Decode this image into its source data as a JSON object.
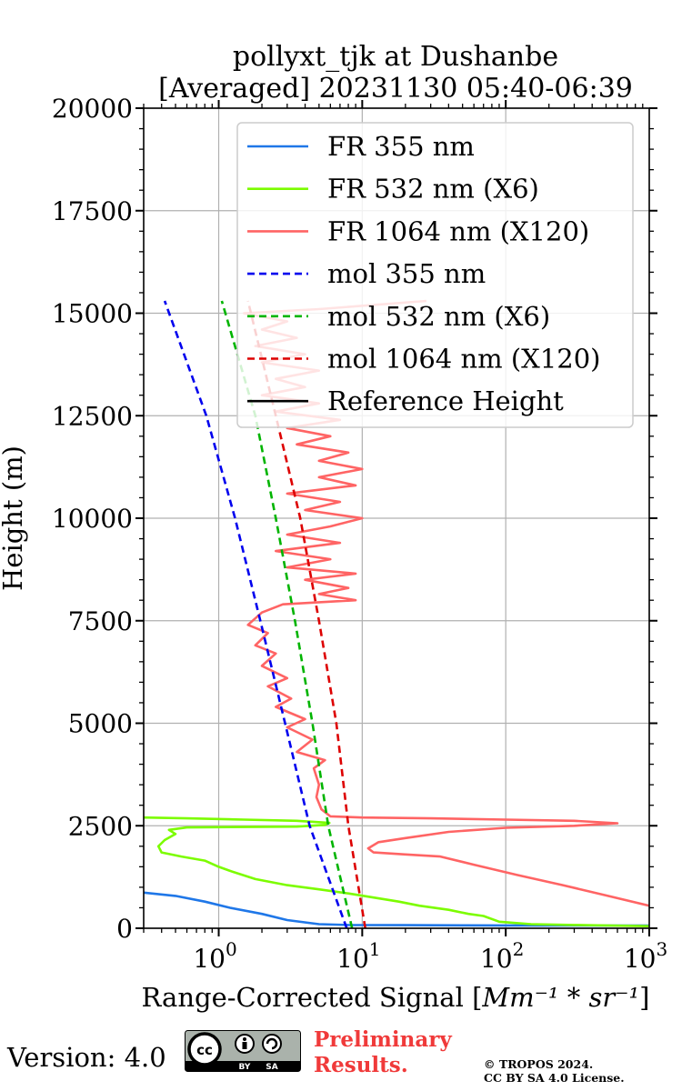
{
  "chart_data": {
    "type": "line",
    "title_lines": [
      "pollyxt_tjk at Dushanbe",
      "[Averaged] 20231130 05:40-06:39"
    ],
    "xlabel": "Range-Corrected Signal [",
    "xlabel_unit": "Mm⁻¹ * sr⁻¹",
    "xlabel_close": "]",
    "ylabel": "Height (m)",
    "xscale": "log",
    "xlim": [
      0.3,
      1000
    ],
    "ylim": [
      0,
      20000
    ],
    "grid": true,
    "legend_placement": "top-right",
    "x_ticks": [
      {
        "value": 1,
        "base": "10",
        "exp": "0"
      },
      {
        "value": 10,
        "base": "10",
        "exp": "1"
      },
      {
        "value": 100,
        "base": "10",
        "exp": "2"
      },
      {
        "value": 1000,
        "base": "10",
        "exp": "3"
      }
    ],
    "y_ticks": [
      0,
      2500,
      5000,
      7500,
      10000,
      12500,
      15000,
      17500,
      20000
    ],
    "series": [
      {
        "name": "FR 355 nm",
        "color": "#1f77e8",
        "style": "solid",
        "points": [
          [
            0.3,
            870
          ],
          [
            0.5,
            790
          ],
          [
            0.8,
            650
          ],
          [
            1.2,
            500
          ],
          [
            2,
            350
          ],
          [
            3,
            200
          ],
          [
            5,
            100
          ],
          [
            8,
            80
          ],
          [
            20,
            75
          ],
          [
            50,
            70
          ],
          [
            100,
            68
          ],
          [
            300,
            66
          ],
          [
            1000,
            65
          ]
        ]
      },
      {
        "name": "FR 532 nm (X6)",
        "color": "#7cfc00",
        "style": "solid",
        "points": [
          [
            1000,
            50
          ],
          [
            300,
            80
          ],
          [
            150,
            100
          ],
          [
            90,
            160
          ],
          [
            70,
            300
          ],
          [
            55,
            350
          ],
          [
            40,
            450
          ],
          [
            25,
            550
          ],
          [
            18,
            650
          ],
          [
            12,
            750
          ],
          [
            8,
            850
          ],
          [
            5,
            950
          ],
          [
            3,
            1050
          ],
          [
            1.8,
            1200
          ],
          [
            1.2,
            1400
          ],
          [
            1,
            1500
          ],
          [
            0.8,
            1650
          ],
          [
            0.55,
            1750
          ],
          [
            0.4,
            1850
          ],
          [
            0.38,
            2000
          ],
          [
            0.42,
            2150
          ],
          [
            0.5,
            2300
          ],
          [
            0.45,
            2400
          ],
          [
            0.6,
            2460
          ],
          [
            1.5,
            2470
          ],
          [
            3.5,
            2480
          ],
          [
            5.5,
            2520
          ],
          [
            5.9,
            2570
          ],
          [
            3.5,
            2620
          ],
          [
            1.5,
            2650
          ],
          [
            0.6,
            2680
          ],
          [
            0.3,
            2700
          ]
        ]
      },
      {
        "name": "FR 1064 nm (X120)",
        "color": "#ff6464",
        "style": "solid",
        "points": [
          [
            1000,
            550
          ],
          [
            500,
            800
          ],
          [
            250,
            1050
          ],
          [
            120,
            1300
          ],
          [
            60,
            1550
          ],
          [
            35,
            1750
          ],
          [
            20,
            1800
          ],
          [
            12,
            1850
          ],
          [
            11,
            1950
          ],
          [
            13,
            2100
          ],
          [
            20,
            2200
          ],
          [
            40,
            2350
          ],
          [
            100,
            2450
          ],
          [
            300,
            2500
          ],
          [
            600,
            2560
          ],
          [
            300,
            2620
          ],
          [
            100,
            2650
          ],
          [
            30,
            2680
          ],
          [
            10,
            2700
          ],
          [
            6,
            2730
          ],
          [
            5.2,
            2900
          ],
          [
            4.8,
            3200
          ],
          [
            5,
            3500
          ],
          [
            4.6,
            3900
          ],
          [
            5.5,
            4100
          ],
          [
            3.5,
            4300
          ],
          [
            4.5,
            4600
          ],
          [
            3,
            4900
          ],
          [
            4,
            5100
          ],
          [
            2.5,
            5400
          ],
          [
            3.2,
            5600
          ],
          [
            2.2,
            5900
          ],
          [
            3,
            6100
          ],
          [
            2,
            6400
          ],
          [
            2.5,
            6700
          ],
          [
            1.8,
            6900
          ],
          [
            2.2,
            7200
          ],
          [
            1.6,
            7400
          ],
          [
            2,
            7700
          ],
          [
            2.8,
            7900
          ],
          [
            9,
            8000
          ],
          [
            5,
            8150
          ],
          [
            8,
            8300
          ],
          [
            4,
            8500
          ],
          [
            9,
            8650
          ],
          [
            3,
            8800
          ],
          [
            6,
            9000
          ],
          [
            2.5,
            9200
          ],
          [
            7,
            9400
          ],
          [
            3,
            9600
          ],
          [
            6,
            9800
          ],
          [
            10,
            10000
          ],
          [
            4,
            10200
          ],
          [
            7,
            10400
          ],
          [
            3,
            10600
          ],
          [
            9,
            10800
          ],
          [
            5,
            11000
          ],
          [
            10,
            11200
          ],
          [
            5,
            11400
          ],
          [
            8,
            11600
          ],
          [
            3.5,
            11800
          ],
          [
            6,
            12000
          ],
          [
            3,
            12200
          ],
          [
            7,
            12400
          ],
          [
            2.5,
            12600
          ],
          [
            5,
            12800
          ],
          [
            2,
            13000
          ],
          [
            4,
            13200
          ],
          [
            2.5,
            13400
          ],
          [
            5,
            13600
          ],
          [
            2,
            13800
          ],
          [
            4,
            14000
          ],
          [
            1.8,
            14200
          ],
          [
            3.5,
            14400
          ],
          [
            2,
            14600
          ],
          [
            3,
            14800
          ],
          [
            1.5,
            15000
          ],
          [
            5,
            15100
          ],
          [
            28,
            15300
          ]
        ]
      },
      {
        "name": "mol 355 nm",
        "color": "#0000ee",
        "style": "dashed",
        "points": [
          [
            7.8,
            0
          ],
          [
            4.3,
            2500
          ],
          [
            2.9,
            5000
          ],
          [
            1.95,
            7500
          ],
          [
            1.3,
            10000
          ],
          [
            0.82,
            12500
          ],
          [
            0.42,
            15300
          ]
        ]
      },
      {
        "name": "mol 532 nm (X6)",
        "color": "#00b400",
        "style": "dashed",
        "points": [
          [
            8.5,
            0
          ],
          [
            5.8,
            2500
          ],
          [
            4.5,
            5000
          ],
          [
            3.4,
            7500
          ],
          [
            2.5,
            10000
          ],
          [
            1.8,
            12500
          ],
          [
            1.05,
            15300
          ]
        ]
      },
      {
        "name": "mol 1064 nm (X120)",
        "color": "#dd0000",
        "style": "dashed",
        "points": [
          [
            10.5,
            0
          ],
          [
            8,
            2500
          ],
          [
            6.6,
            5000
          ],
          [
            5,
            7500
          ],
          [
            3.7,
            10000
          ],
          [
            2.5,
            12500
          ],
          [
            1.6,
            15300
          ]
        ]
      },
      {
        "name": "Reference Height",
        "color": "#000000",
        "style": "solid",
        "points": []
      }
    ]
  },
  "footer": {
    "version": "Version: 4.0",
    "preliminary_line1": "Preliminary",
    "preliminary_line2": "Results.",
    "copyright_line1": "© TROPOS 2024.",
    "copyright_line2": "CC BY SA 4.0 License.",
    "badge_cc": "cc",
    "badge_by": "BY",
    "badge_sa": "SA"
  }
}
